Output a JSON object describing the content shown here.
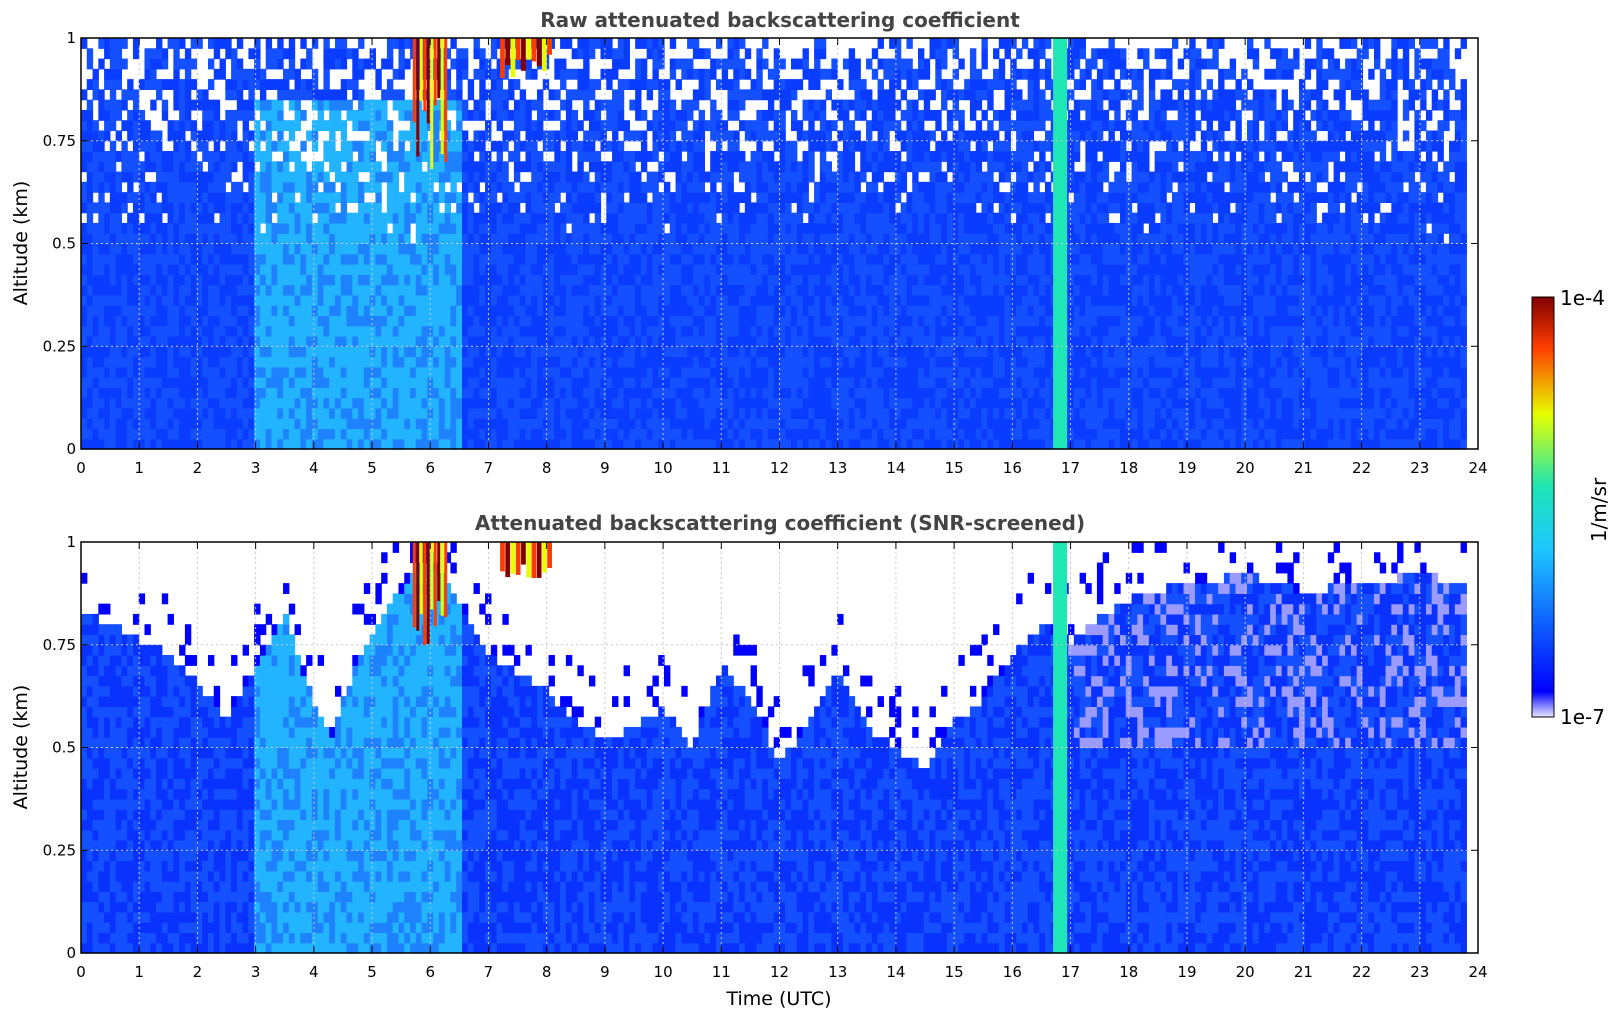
{
  "chart_data": [
    {
      "type": "heatmap",
      "title": "Raw attenuated backscattering coefficient",
      "xlabel": "",
      "ylabel": "Altitude (km)",
      "xlim": [
        0,
        24
      ],
      "ylim": [
        0,
        1
      ],
      "x_ticks": [
        0,
        1,
        2,
        3,
        4,
        5,
        6,
        7,
        8,
        9,
        10,
        11,
        12,
        13,
        14,
        15,
        16,
        17,
        18,
        19,
        20,
        21,
        22,
        23,
        24
      ],
      "y_ticks": [
        0,
        0.25,
        0.5,
        0.75,
        1
      ],
      "y_tick_labels": [
        "0",
        "0.25",
        "0.5",
        "0.75",
        "1"
      ],
      "grid": true,
      "data_end_time": 23.8,
      "features": [
        {
          "kind": "cloud",
          "x_range": [
            5.7,
            6.3
          ],
          "y_range": [
            0.68,
            1.0
          ],
          "level": "high"
        },
        {
          "kind": "cloud",
          "x_range": [
            7.2,
            8.1
          ],
          "y_range": [
            0.9,
            1.0
          ],
          "level": "high"
        },
        {
          "kind": "column",
          "x_range": [
            16.7,
            16.95
          ],
          "y_range": [
            0,
            1.0
          ],
          "level": "medium"
        }
      ]
    },
    {
      "type": "heatmap",
      "title": "Attenuated backscattering coefficient (SNR-screened)",
      "xlabel": "Time (UTC)",
      "ylabel": "Altitude (km)",
      "xlim": [
        0,
        24
      ],
      "ylim": [
        0,
        1
      ],
      "x_ticks": [
        0,
        1,
        2,
        3,
        4,
        5,
        6,
        7,
        8,
        9,
        10,
        11,
        12,
        13,
        14,
        15,
        16,
        17,
        18,
        19,
        20,
        21,
        22,
        23,
        24
      ],
      "y_ticks": [
        0,
        0.25,
        0.5,
        0.75,
        1
      ],
      "y_tick_labels": [
        "0",
        "0.25",
        "0.5",
        "0.75",
        "1"
      ],
      "grid": true,
      "data_end_time": 23.8,
      "snr_top_km": [
        [
          0,
          0.83
        ],
        [
          0.5,
          0.8
        ],
        [
          1,
          0.76
        ],
        [
          1.5,
          0.73
        ],
        [
          2,
          0.66
        ],
        [
          2.5,
          0.56
        ],
        [
          3,
          0.7
        ],
        [
          3.5,
          0.83
        ],
        [
          4,
          0.6
        ],
        [
          4.3,
          0.52
        ],
        [
          4.7,
          0.7
        ],
        [
          5.2,
          0.83
        ],
        [
          6,
          0.98
        ],
        [
          6.5,
          0.85
        ],
        [
          7,
          0.72
        ],
        [
          7.5,
          0.68
        ],
        [
          8,
          0.64
        ],
        [
          8.5,
          0.56
        ],
        [
          9,
          0.52
        ],
        [
          9.5,
          0.55
        ],
        [
          10,
          0.6
        ],
        [
          10.5,
          0.5
        ],
        [
          11,
          0.7
        ],
        [
          11.5,
          0.62
        ],
        [
          12,
          0.46
        ],
        [
          12.5,
          0.56
        ],
        [
          13,
          0.68
        ],
        [
          13.5,
          0.55
        ],
        [
          14,
          0.5
        ],
        [
          14.5,
          0.45
        ],
        [
          15,
          0.56
        ],
        [
          15.5,
          0.62
        ],
        [
          16,
          0.72
        ],
        [
          16.5,
          0.8
        ],
        [
          17,
          0.75
        ],
        [
          17.5,
          0.82
        ],
        [
          18,
          0.86
        ],
        [
          19,
          0.9
        ],
        [
          20,
          0.92
        ],
        [
          21,
          0.88
        ],
        [
          22,
          0.9
        ],
        [
          23,
          0.92
        ],
        [
          23.8,
          0.9
        ]
      ],
      "features": [
        {
          "kind": "cloud",
          "x_range": [
            5.7,
            6.3
          ],
          "y_range": [
            0.68,
            1.0
          ],
          "level": "high"
        },
        {
          "kind": "cloud",
          "x_range": [
            7.2,
            8.1
          ],
          "y_range": [
            0.9,
            1.0
          ],
          "level": "high"
        },
        {
          "kind": "column",
          "x_range": [
            16.7,
            16.95
          ],
          "y_range": [
            0,
            1.0
          ],
          "level": "medium"
        }
      ]
    }
  ],
  "colorbar": {
    "min_label": "1e-7",
    "max_label": "1e-4",
    "label": "1/m/sr",
    "scale": "log",
    "colors": [
      "#e8e8ff",
      "#0000ff",
      "#1ec8ff",
      "#1ee6b4",
      "#e6ff00",
      "#ff3c00",
      "#820000"
    ]
  }
}
